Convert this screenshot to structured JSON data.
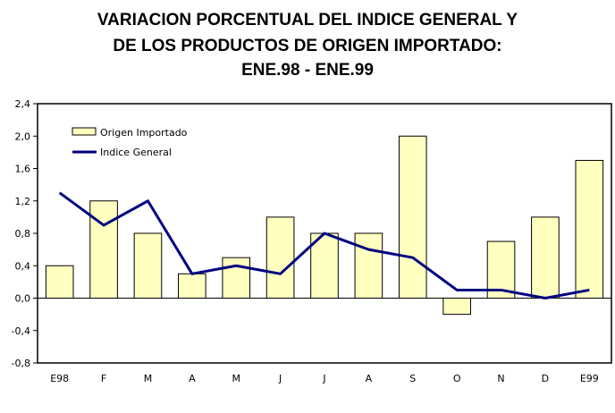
{
  "chart_data": {
    "type": "bar",
    "title_lines": [
      "VARIACION PORCENTUAL DEL INDICE GENERAL Y",
      "DE LOS PRODUCTOS DE ORIGEN IMPORTADO:",
      "ENE.98 - ENE.99"
    ],
    "categories": [
      "E98",
      "F",
      "M",
      "A",
      "M",
      "J",
      "J",
      "A",
      "S",
      "O",
      "N",
      "D",
      "E99"
    ],
    "series": [
      {
        "name": "Origen Importado",
        "type": "bar",
        "color": "#FFFFC0",
        "values": [
          0.4,
          1.2,
          0.8,
          0.3,
          0.5,
          1.0,
          0.8,
          0.8,
          2.0,
          -0.2,
          0.7,
          1.0,
          1.7
        ]
      },
      {
        "name": "Indice General",
        "type": "line",
        "color": "#000080",
        "values": [
          1.3,
          0.9,
          1.2,
          0.3,
          0.4,
          0.3,
          0.8,
          0.6,
          0.5,
          0.1,
          0.1,
          0.0,
          0.1
        ]
      }
    ],
    "ylim": [
      -0.8,
      2.4
    ],
    "yticks": [
      "2,4",
      "2,0",
      "1,6",
      "1,2",
      "0,8",
      "0,4",
      "0,0",
      "-0,4",
      "-0,8"
    ],
    "ytick_values": [
      2.4,
      2.0,
      1.6,
      1.2,
      0.8,
      0.4,
      0.0,
      -0.4,
      -0.8
    ],
    "xlabel": "",
    "ylabel": "",
    "legend": "top-left",
    "grid": false
  }
}
